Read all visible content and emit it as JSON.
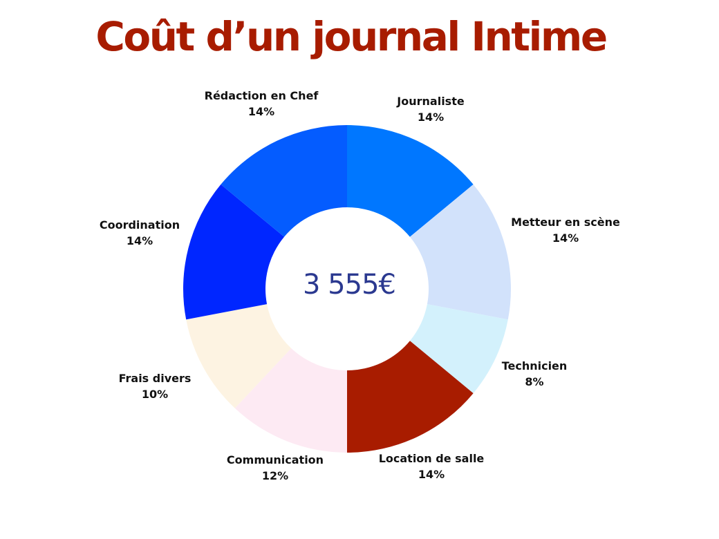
{
  "title": "Coût d’un journal Intime",
  "colors": {
    "title": "#a81c00",
    "center_text": "#2b3990"
  },
  "chart_data": {
    "type": "pie",
    "style": "donut",
    "title": "Coût d’un journal Intime",
    "center_label": "3 555€",
    "slices": [
      {
        "label": "Journaliste",
        "percent_label": "14%",
        "value": 14,
        "color": "#0077ff"
      },
      {
        "label": "Metteur en scène",
        "percent_label": "14%",
        "value": 14,
        "color": "#d2e2fb"
      },
      {
        "label": "Technicien",
        "percent_label": "8%",
        "value": 8,
        "color": "#d3f1fc"
      },
      {
        "label": "Location de salle",
        "percent_label": "14%",
        "value": 14,
        "color": "#a81c00"
      },
      {
        "label": "Communication",
        "percent_label": "12%",
        "value": 12,
        "color": "#fdeaf3"
      },
      {
        "label": "Frais divers",
        "percent_label": "10%",
        "value": 10,
        "color": "#fdf3e2"
      },
      {
        "label": "Coordination",
        "percent_label": "14%",
        "value": 14,
        "color": "#0026ff"
      },
      {
        "label": "Rédaction en Chef",
        "percent_label": "14%",
        "value": 14,
        "color": "#045cff"
      }
    ]
  }
}
